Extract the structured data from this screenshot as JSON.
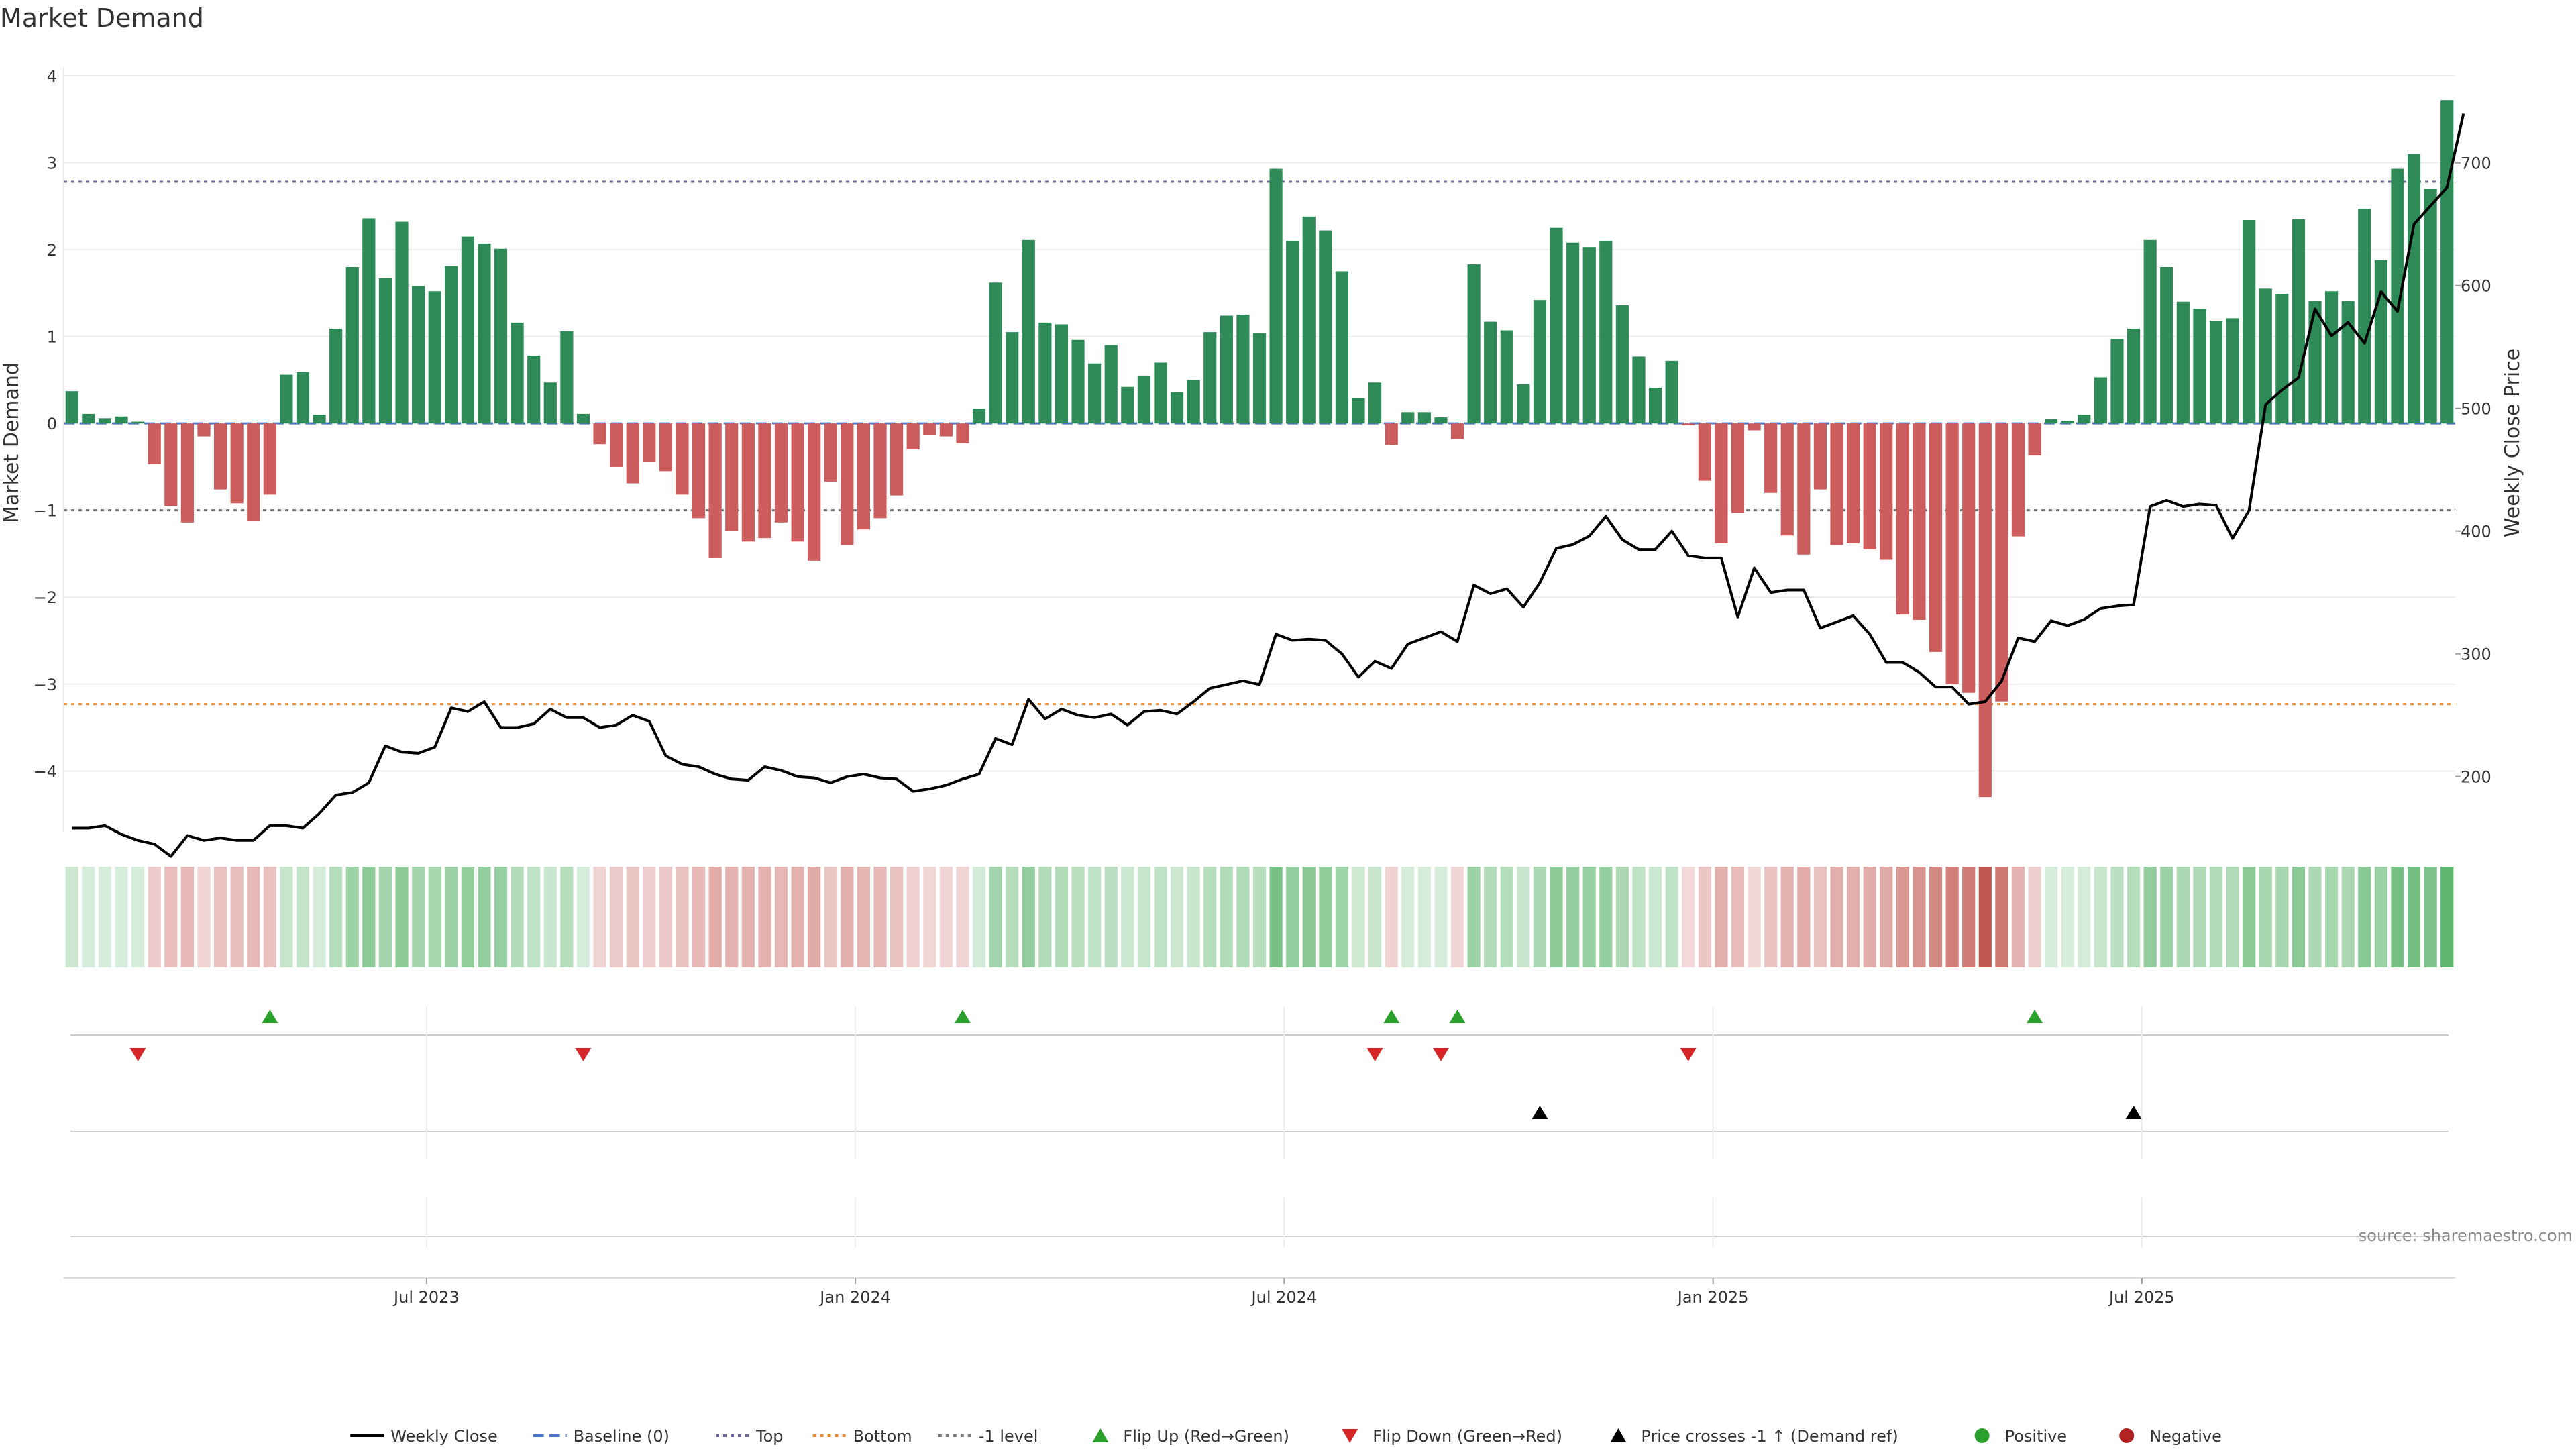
{
  "chart_data": {
    "type": "bar",
    "title": "Market Demand",
    "ylabel_left": "Market Demand",
    "ylabel_right": "Weekly Close Price",
    "source": "source: sharemaestro.com",
    "left_yticks": [
      "4",
      "3",
      "2",
      "1",
      "0",
      "−1",
      "−2",
      "−3",
      "−4"
    ],
    "right_yticks": [
      "700",
      "600",
      "500",
      "400",
      "300",
      "200"
    ],
    "left_ylim": [
      -4.7,
      4.1
    ],
    "right_ylim": [
      155,
      778
    ],
    "x_ticks": [
      {
        "label": "Jul 2023",
        "week": 22
      },
      {
        "label": "Jan 2024",
        "week": 48
      },
      {
        "label": "Jul 2024",
        "week": 74
      },
      {
        "label": "Jan 2025",
        "week": 100
      },
      {
        "label": "Jul 2025",
        "week": 126
      }
    ],
    "levels": {
      "top": 2.78,
      "minus_one": -1.0,
      "bottom": -3.23,
      "baseline": 0
    },
    "series": [
      {
        "name": "Market Demand",
        "values": [
          0.37,
          0.11,
          0.06,
          0.08,
          0.02,
          -0.47,
          -0.95,
          -1.14,
          -0.15,
          -0.76,
          -0.92,
          -1.12,
          -0.82,
          0.56,
          0.59,
          0.1,
          1.09,
          1.8,
          2.36,
          1.67,
          2.32,
          1.58,
          1.52,
          1.81,
          2.15,
          2.07,
          2.01,
          1.16,
          0.78,
          0.47,
          1.06,
          0.11,
          -0.24,
          -0.5,
          -0.69,
          -0.44,
          -0.55,
          -0.82,
          -1.09,
          -1.55,
          -1.24,
          -1.36,
          -1.32,
          -1.14,
          -1.36,
          -1.58,
          -0.67,
          -1.4,
          -1.22,
          -1.09,
          -0.83,
          -0.3,
          -0.13,
          -0.15,
          -0.23,
          0.17,
          1.62,
          1.05,
          2.11,
          1.16,
          1.14,
          0.96,
          0.69,
          0.9,
          0.42,
          0.55,
          0.7,
          0.36,
          0.5,
          1.05,
          1.24,
          1.25,
          1.04,
          2.93,
          2.1,
          2.38,
          2.22,
          1.75,
          0.29,
          0.47,
          -0.25,
          0.13,
          0.13,
          0.07,
          -0.18,
          1.83,
          1.17,
          1.07,
          0.45,
          1.42,
          2.25,
          2.08,
          2.03,
          2.1,
          1.36,
          0.77,
          0.41,
          0.72,
          -0.02,
          -0.66,
          -1.38,
          -1.03,
          -0.08,
          -0.8,
          -1.29,
          -1.51,
          -0.76,
          -1.4,
          -1.38,
          -1.45,
          -1.57,
          -2.2,
          -2.26,
          -2.63,
          -3.0,
          -3.1,
          -4.3,
          -3.2,
          -1.3,
          -0.37,
          0.05,
          0.03,
          0.1,
          0.53,
          0.97,
          1.09,
          2.11,
          1.8,
          1.4,
          1.32,
          1.18,
          1.21,
          2.34,
          1.55,
          1.49,
          2.35,
          1.41,
          1.52,
          1.41,
          2.47,
          1.88,
          2.93,
          3.1,
          2.7,
          3.72
        ]
      },
      {
        "name": "Weekly Close",
        "values": [
          158,
          158,
          160,
          153,
          148,
          145,
          135,
          152,
          148,
          150,
          148,
          148,
          160,
          160,
          158,
          170,
          185,
          187,
          195,
          225,
          220,
          219,
          224,
          256,
          253,
          261,
          240,
          240,
          243,
          255,
          248,
          248,
          240,
          242,
          250,
          245,
          217,
          210,
          208,
          202,
          198,
          197,
          208,
          205,
          200,
          199,
          195,
          200,
          202,
          199,
          198,
          188,
          190,
          193,
          198,
          202,
          231,
          226,
          263,
          247,
          255,
          250,
          248,
          251,
          242,
          253,
          254,
          251,
          261,
          272,
          275,
          278,
          275,
          316,
          311,
          312,
          311,
          300,
          281,
          294,
          288,
          308,
          313,
          318,
          310,
          356,
          349,
          353,
          338,
          358,
          386,
          389,
          396,
          412,
          393,
          385,
          385,
          400,
          380,
          378,
          378,
          330,
          370,
          350,
          352,
          352,
          321,
          326,
          331,
          316,
          293,
          293,
          285,
          273,
          273,
          259,
          261,
          278,
          313,
          310,
          327,
          323,
          328,
          337,
          339,
          340,
          420,
          425,
          420,
          422,
          421,
          394,
          417,
          503,
          515,
          525,
          581,
          559,
          570,
          553,
          595,
          579,
          650,
          665,
          680,
          740
        ]
      }
    ],
    "legend": [
      {
        "label": "Weekly Close",
        "symbol": "line",
        "color": "#000000"
      },
      {
        "label": "Baseline (0)",
        "symbol": "dash",
        "color": "#4a76c4"
      },
      {
        "label": "Top",
        "symbol": "dot",
        "color": "#6a6a9a"
      },
      {
        "label": "Bottom",
        "symbol": "dot",
        "color": "#e6892e"
      },
      {
        "label": "-1 level",
        "symbol": "dot",
        "color": "#777777"
      },
      {
        "label": "Flip Up (Red→Green)",
        "symbol": "triangle-up",
        "color": "#2ca02c"
      },
      {
        "label": "Flip Down (Green→Red)",
        "symbol": "triangle-down",
        "color": "#d62728"
      },
      {
        "label": "Price crosses -1 ↑ (Demand ref)",
        "symbol": "triangle-up",
        "color": "#000000"
      },
      {
        "label": "Positive",
        "symbol": "circle",
        "color": "#2ca02c"
      },
      {
        "label": "Negative",
        "symbol": "circle",
        "color": "#b22222"
      }
    ],
    "events": {
      "flip_up_weeks": [
        12,
        54,
        80,
        84,
        119
      ],
      "flip_down_weeks": [
        4,
        31,
        79,
        83,
        98
      ],
      "price_cross_weeks": [
        89,
        125
      ]
    },
    "colors": {
      "positive_bar": "#2e8b57",
      "negative_bar": "#cd5c5c",
      "price_line": "#000000"
    }
  }
}
